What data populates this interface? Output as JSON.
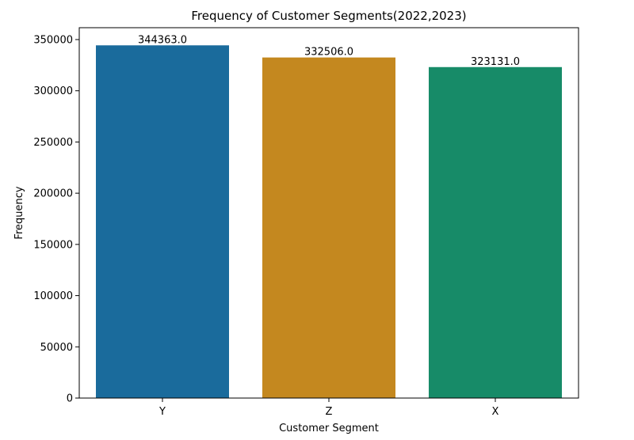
{
  "chart_data": {
    "type": "bar",
    "title": "Frequency of Customer Segments(2022,2023)",
    "xlabel": "Customer Segment",
    "ylabel": "Frequency",
    "categories": [
      "Y",
      "Z",
      "X"
    ],
    "values": [
      344363.0,
      332506.0,
      323131.0
    ],
    "value_labels": [
      "344363.0",
      "332506.0",
      "323131.0"
    ],
    "colors": [
      "#1a6b9c",
      "#c4881f",
      "#178b68"
    ],
    "yticks": [
      0,
      50000,
      100000,
      150000,
      200000,
      250000,
      300000,
      350000
    ],
    "ylim": [
      0,
      361581.15
    ],
    "grid": false,
    "legend": "none"
  }
}
